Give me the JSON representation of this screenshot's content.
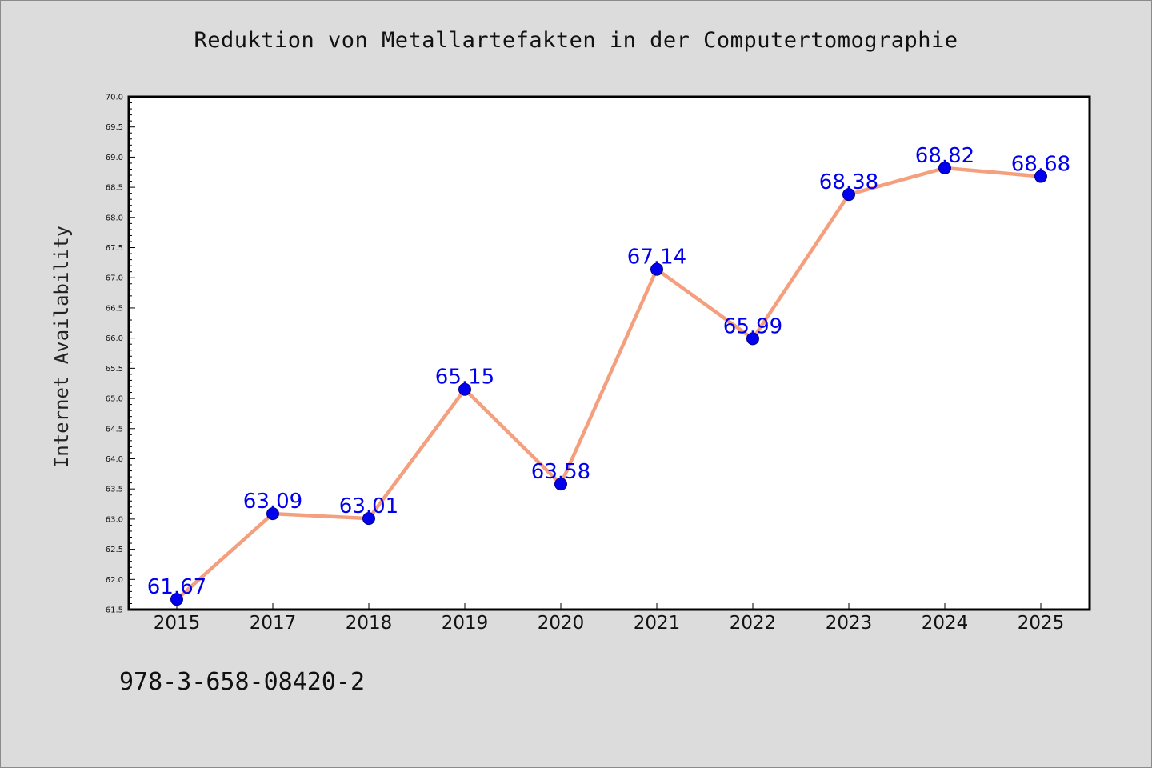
{
  "colors": {
    "background": "#dcdcdc",
    "plot_background": "#ffffff",
    "line": "#f4a07e",
    "marker": "#0000ee",
    "data_label": "#0000ee"
  },
  "footnote": "978-3-658-08420-2",
  "chart_data": {
    "type": "line",
    "title": "Reduktion von Metallartefakten in der Computertomographie",
    "xlabel": "",
    "ylabel": "Internet Availability",
    "categories": [
      "2015",
      "2017",
      "2018",
      "2019",
      "2020",
      "2021",
      "2022",
      "2023",
      "2024",
      "2025"
    ],
    "series": [
      {
        "values": [
          61.67,
          63.09,
          63.01,
          65.15,
          63.58,
          67.14,
          65.99,
          68.38,
          68.82,
          68.68
        ],
        "labels": [
          "61.67",
          "63.09",
          "63.01",
          "65.15",
          "63.58",
          "67.14",
          "65.99",
          "68.38",
          "68.82",
          "68.68"
        ]
      }
    ],
    "ylim": [
      61.5,
      70.0
    ],
    "yticks": [
      61.5,
      62.0,
      62.5,
      63.0,
      63.5,
      64.0,
      64.5,
      65.0,
      65.5,
      66.0,
      66.5,
      67.0,
      67.5,
      68.0,
      68.5,
      69.0,
      69.5,
      70.0
    ],
    "ytick_labels": [
      "61.5",
      "62.0",
      "62.5",
      "63.0",
      "63.5",
      "64.0",
      "64.5",
      "65.0",
      "65.5",
      "66.0",
      "66.5",
      "67.0",
      "67.5",
      "68.0",
      "68.5",
      "69.0",
      "69.5",
      "70.0"
    ],
    "grid": false,
    "legend": "none"
  }
}
